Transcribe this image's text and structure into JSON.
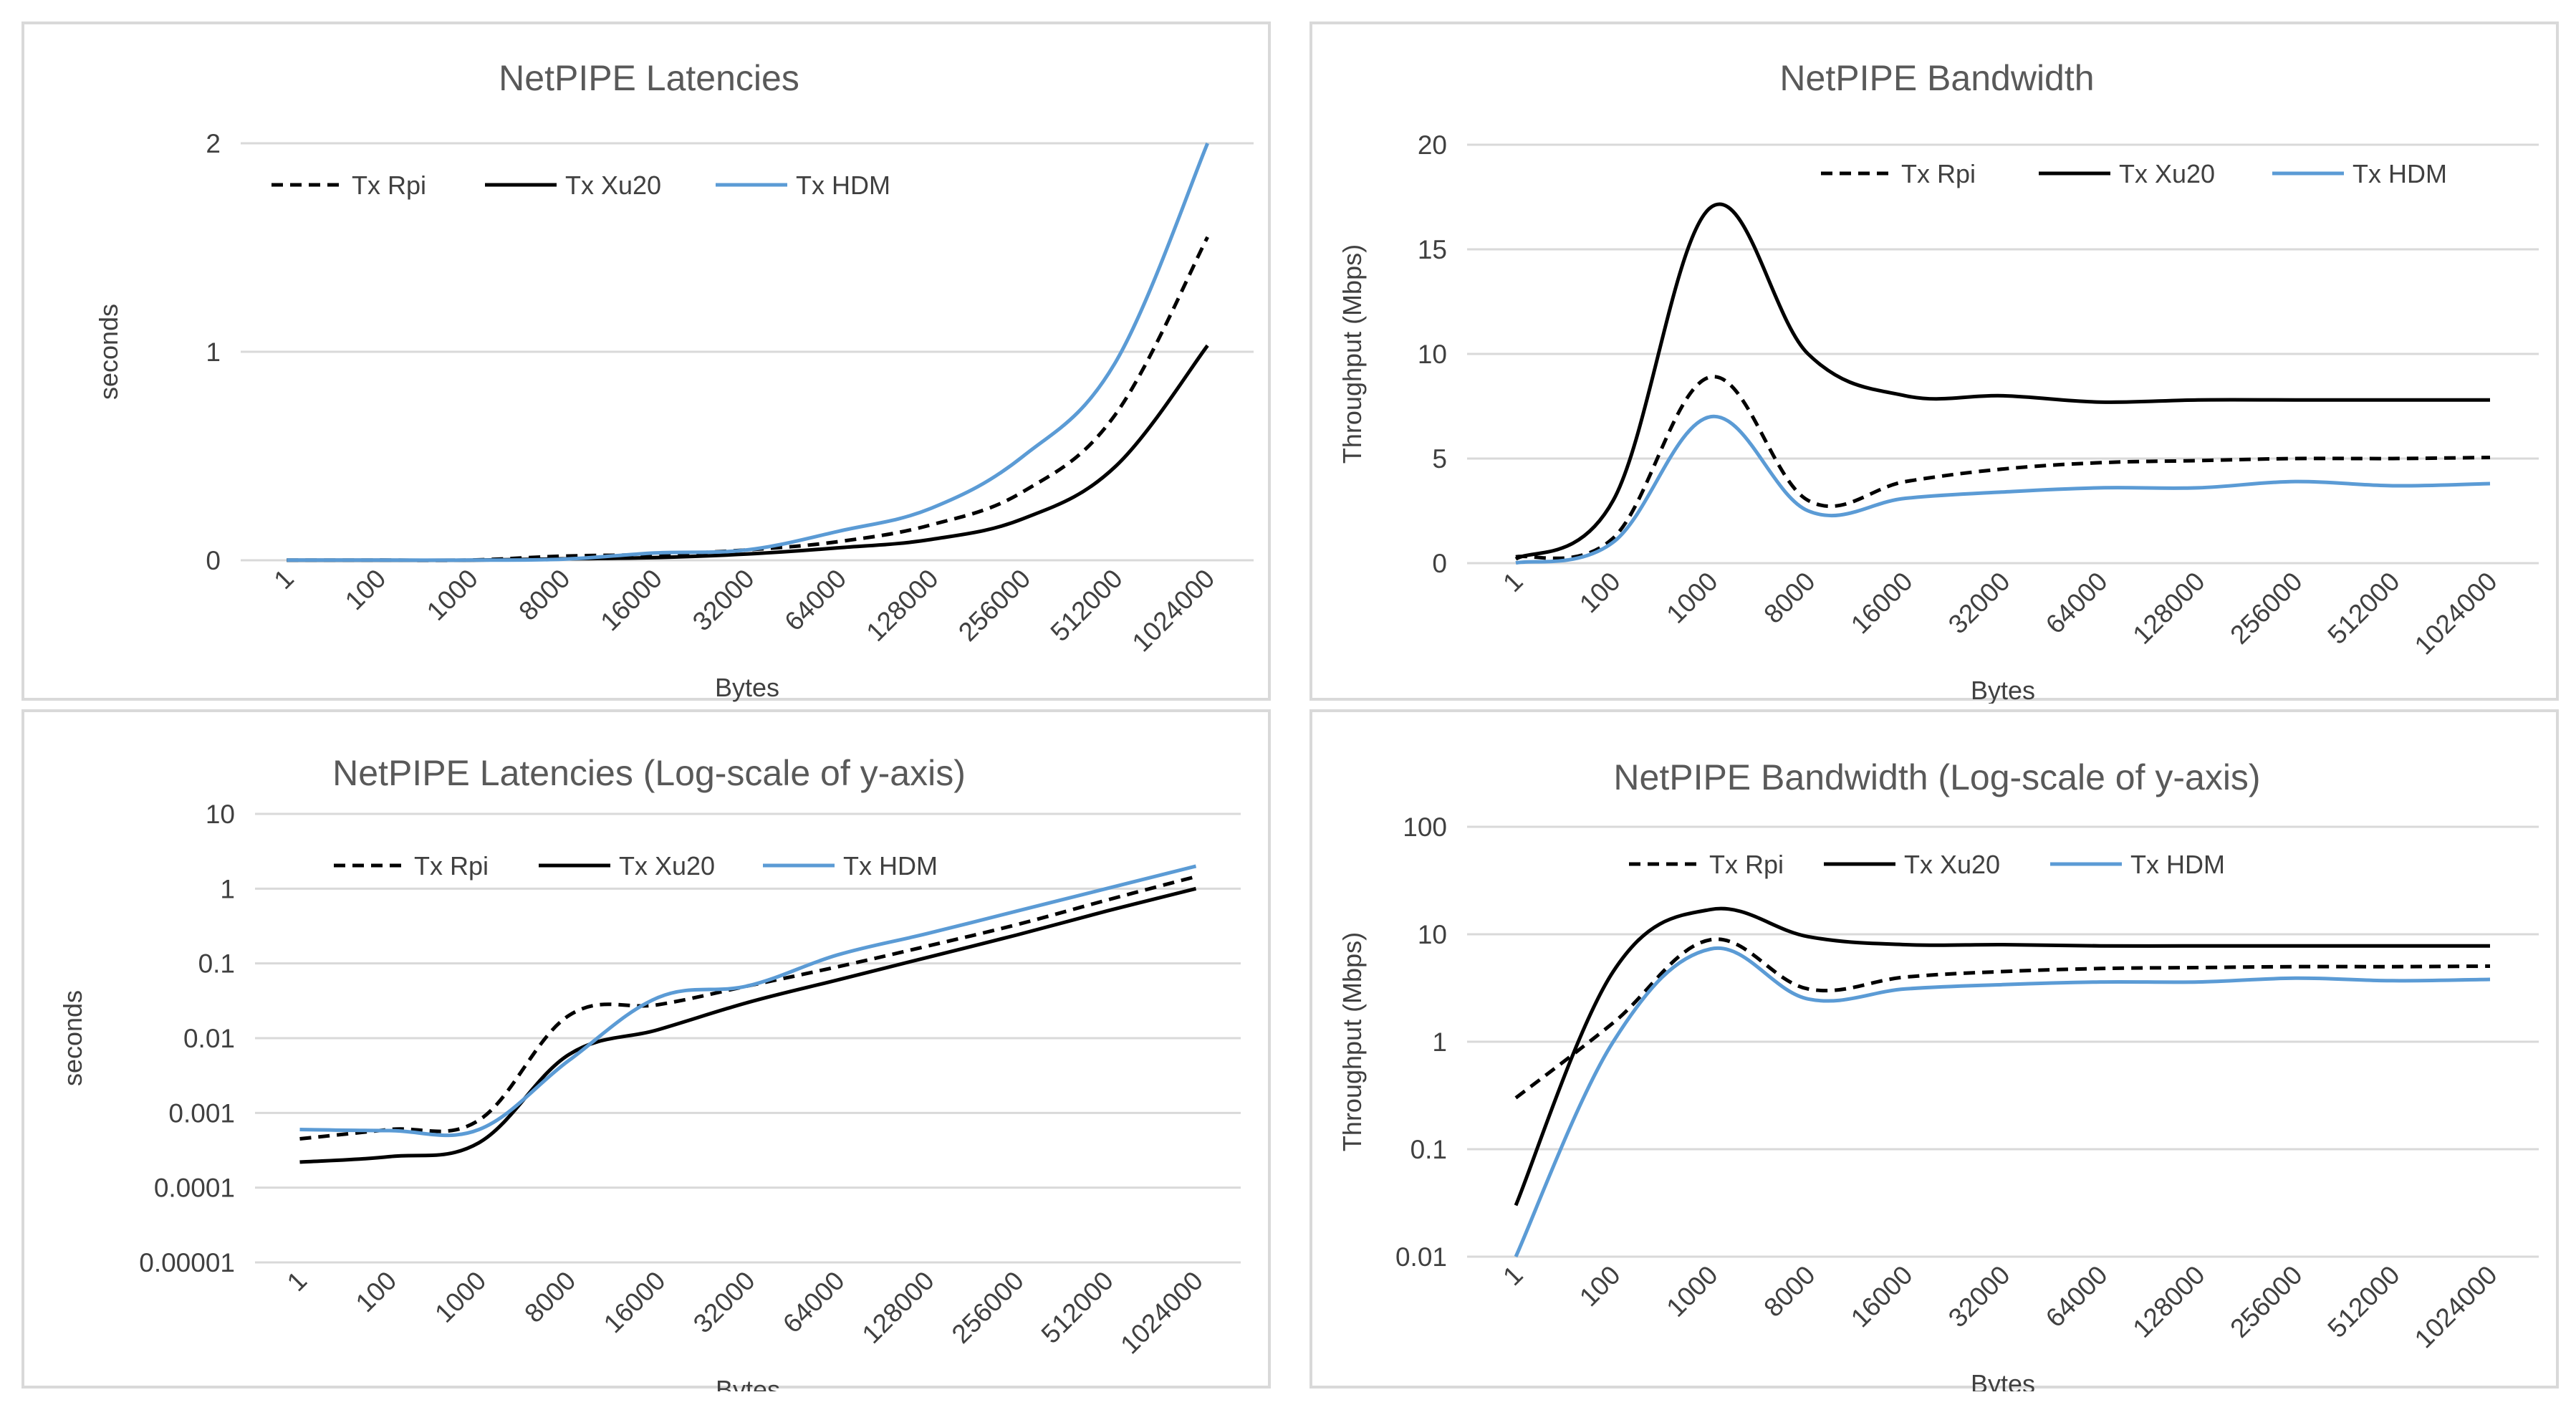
{
  "colors": {
    "rpi": "#000000",
    "xu20": "#000000",
    "hdm": "#5b9bd5",
    "grid": "#d9d9d9",
    "text": "#404040"
  },
  "chart_data": [
    {
      "id": "lat",
      "type": "line",
      "title": "NetPIPE Latencies",
      "xlabel": "Bytes",
      "ylabel": "seconds",
      "yscale": "linear",
      "ylim": [
        0,
        2
      ],
      "yticks": [
        "0",
        "1",
        "2"
      ],
      "ytick_values": [
        0,
        1,
        2
      ],
      "categories": [
        "1",
        "100",
        "1000",
        "8000",
        "16000",
        "32000",
        "64000",
        "128000",
        "256000",
        "512000",
        "1024000"
      ],
      "legend": [
        "Tx Rpi",
        "Tx Xu20",
        "Tx HDM"
      ],
      "series": [
        {
          "name": "Tx Rpi",
          "style": "dashed",
          "color": "#000000",
          "values": [
            0.0005,
            0.0006,
            0.001,
            0.02,
            0.028,
            0.05,
            0.09,
            0.17,
            0.33,
            0.7,
            1.55
          ]
        },
        {
          "name": "Tx Xu20",
          "style": "solid",
          "color": "#000000",
          "values": [
            0.0002,
            0.0003,
            0.0005,
            0.007,
            0.013,
            0.03,
            0.06,
            0.1,
            0.2,
            0.45,
            1.03
          ]
        },
        {
          "name": "Tx HDM",
          "style": "solid",
          "color": "#5b9bd5",
          "values": [
            0.0006,
            0.0006,
            0.0007,
            0.005,
            0.035,
            0.05,
            0.14,
            0.25,
            0.5,
            0.95,
            2.0
          ]
        }
      ]
    },
    {
      "id": "bw",
      "type": "line",
      "title": "NetPIPE Bandwidth",
      "xlabel": "Bytes",
      "ylabel": "Throughput (Mbps)",
      "yscale": "linear",
      "ylim": [
        0,
        20
      ],
      "yticks": [
        "0",
        "5",
        "10",
        "15",
        "20"
      ],
      "ytick_values": [
        0,
        5,
        10,
        15,
        20
      ],
      "categories": [
        "1",
        "100",
        "1000",
        "8000",
        "16000",
        "32000",
        "64000",
        "128000",
        "256000",
        "512000",
        "1024000"
      ],
      "legend": [
        "Tx Rpi",
        "Tx Xu20",
        "Tx HDM"
      ],
      "series": [
        {
          "name": "Tx Rpi",
          "style": "dashed",
          "color": "#000000",
          "values": [
            0.3,
            1.2,
            8.9,
            3.0,
            3.9,
            4.5,
            4.8,
            4.9,
            5.0,
            5.0,
            5.05
          ]
        },
        {
          "name": "Tx Xu20",
          "style": "solid",
          "color": "#000000",
          "values": [
            0.2,
            3.0,
            17.0,
            10.0,
            8.0,
            8.0,
            7.7,
            7.8,
            7.8,
            7.8,
            7.8
          ]
        },
        {
          "name": "Tx HDM",
          "style": "solid",
          "color": "#5b9bd5",
          "values": [
            0.01,
            1.0,
            7.0,
            2.5,
            3.1,
            3.4,
            3.6,
            3.6,
            3.9,
            3.7,
            3.8
          ]
        }
      ]
    },
    {
      "id": "latlog",
      "type": "line",
      "title": "NetPIPE Latencies (Log-scale of y-axis)",
      "xlabel": "Bytes",
      "ylabel": "seconds",
      "yscale": "log",
      "ylim": [
        1e-05,
        10
      ],
      "yticks": [
        "0.00001",
        "0.0001",
        "0.001",
        "0.01",
        "0.1",
        "1",
        "10"
      ],
      "ytick_values": [
        1e-05,
        0.0001,
        0.001,
        0.01,
        0.1,
        1,
        10
      ],
      "categories": [
        "1",
        "100",
        "1000",
        "8000",
        "16000",
        "32000",
        "64000",
        "128000",
        "256000",
        "512000",
        "1024000"
      ],
      "legend": [
        "Tx Rpi",
        "Tx Xu20",
        "Tx HDM"
      ],
      "series": [
        {
          "name": "Tx Rpi",
          "style": "dashed",
          "color": "#000000",
          "values": [
            0.00045,
            0.0006,
            0.0008,
            0.02,
            0.028,
            0.05,
            0.09,
            0.17,
            0.33,
            0.7,
            1.45
          ]
        },
        {
          "name": "Tx Xu20",
          "style": "solid",
          "color": "#000000",
          "values": [
            0.00022,
            0.00026,
            0.0004,
            0.006,
            0.013,
            0.03,
            0.06,
            0.12,
            0.24,
            0.5,
            1.0
          ]
        },
        {
          "name": "Tx HDM",
          "style": "solid",
          "color": "#5b9bd5",
          "values": [
            0.0006,
            0.00058,
            0.0006,
            0.005,
            0.035,
            0.05,
            0.13,
            0.25,
            0.5,
            1.0,
            2.0
          ]
        }
      ]
    },
    {
      "id": "bwlog",
      "type": "line",
      "title": "NetPIPE Bandwidth (Log-scale of y-axis)",
      "xlabel": "Bytes",
      "ylabel": "Throughput (Mbps)",
      "yscale": "log",
      "ylim": [
        0.01,
        100
      ],
      "yticks": [
        "0.01",
        "0.1",
        "1",
        "10",
        "100"
      ],
      "ytick_values": [
        0.01,
        0.1,
        1,
        10,
        100
      ],
      "categories": [
        "1",
        "100",
        "1000",
        "8000",
        "16000",
        "32000",
        "64000",
        "128000",
        "256000",
        "512000",
        "1024000"
      ],
      "legend": [
        "Tx Rpi",
        "Tx Xu20",
        "Tx HDM"
      ],
      "series": [
        {
          "name": "Tx Rpi",
          "style": "dashed",
          "color": "#000000",
          "values": [
            0.3,
            1.5,
            8.9,
            3.1,
            4.0,
            4.5,
            4.8,
            4.9,
            5.0,
            5.0,
            5.05
          ]
        },
        {
          "name": "Tx Xu20",
          "style": "solid",
          "color": "#000000",
          "values": [
            0.03,
            4.5,
            17.0,
            9.5,
            8.0,
            8.0,
            7.8,
            7.8,
            7.8,
            7.8,
            7.8
          ]
        },
        {
          "name": "Tx HDM",
          "style": "solid",
          "color": "#5b9bd5",
          "values": [
            0.01,
            1.0,
            7.3,
            2.5,
            3.1,
            3.4,
            3.6,
            3.6,
            3.9,
            3.7,
            3.8
          ]
        }
      ]
    }
  ]
}
